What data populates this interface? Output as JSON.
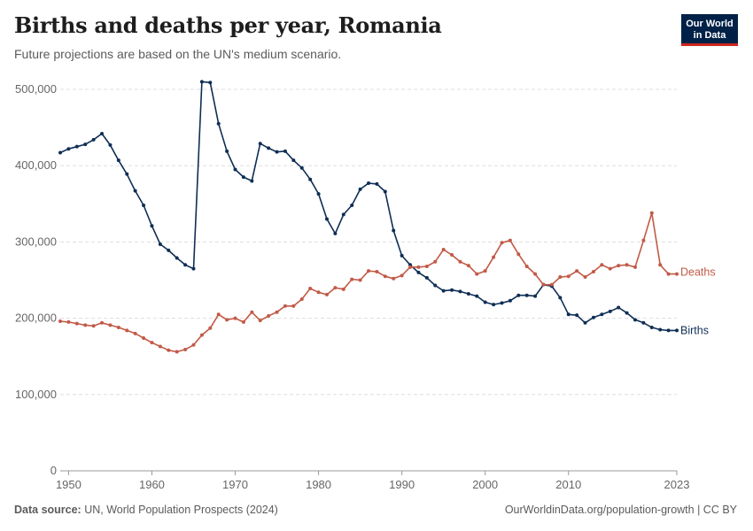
{
  "header": {
    "title": "Births and deaths per year, Romania",
    "subtitle": "Future projections are based on the UN's medium scenario.",
    "logo_line1": "Our World",
    "logo_line2": "in Data"
  },
  "footer": {
    "source_label": "Data source:",
    "source_text": "UN, World Population Prospects (2024)",
    "attribution": "OurWorldinData.org/population-growth | CC BY"
  },
  "colors": {
    "births": "#0f2e55",
    "deaths": "#c25a47",
    "grid": "#dddddd",
    "axis": "#666666"
  },
  "chart_data": {
    "type": "line",
    "title": "Births and deaths per year, Romania",
    "xlabel": "",
    "ylabel": "",
    "xlim": [
      1949,
      2023
    ],
    "ylim": [
      0,
      500000
    ],
    "x_ticks": [
      1950,
      1960,
      1970,
      1980,
      1990,
      2000,
      2010,
      2023
    ],
    "x_tick_labels": [
      "1950",
      "1960",
      "1970",
      "1980",
      "1990",
      "2000",
      "2010",
      "2023"
    ],
    "y_ticks": [
      0,
      100000,
      200000,
      300000,
      400000,
      500000
    ],
    "y_tick_labels": [
      "0",
      "100,000",
      "200,000",
      "300,000",
      "400,000",
      "500,000"
    ],
    "grid": true,
    "legend": "inline-right",
    "series": [
      {
        "name": "Births",
        "label": "Births",
        "x": [
          1949,
          1950,
          1951,
          1952,
          1953,
          1954,
          1955,
          1956,
          1957,
          1958,
          1959,
          1960,
          1961,
          1962,
          1963,
          1964,
          1965,
          1966,
          1967,
          1968,
          1969,
          1970,
          1971,
          1972,
          1973,
          1974,
          1975,
          1976,
          1977,
          1978,
          1979,
          1980,
          1981,
          1982,
          1983,
          1984,
          1985,
          1986,
          1987,
          1988,
          1989,
          1990,
          1991,
          1992,
          1993,
          1994,
          1995,
          1996,
          1997,
          1998,
          1999,
          2000,
          2001,
          2002,
          2003,
          2004,
          2005,
          2006,
          2007,
          2008,
          2009,
          2010,
          2011,
          2012,
          2013,
          2014,
          2015,
          2016,
          2017,
          2018,
          2019,
          2020,
          2021,
          2022,
          2023
        ],
        "values": [
          417000,
          422000,
          425000,
          428000,
          434000,
          442000,
          427000,
          407000,
          389000,
          367000,
          348000,
          321000,
          297000,
          289000,
          279000,
          270000,
          265000,
          510000,
          509000,
          455000,
          419000,
          395000,
          385000,
          380000,
          429000,
          423000,
          418000,
          419000,
          407000,
          397000,
          382000,
          363000,
          330000,
          311000,
          336000,
          348000,
          369000,
          377000,
          376000,
          366000,
          315000,
          282000,
          270000,
          260000,
          253000,
          243000,
          236000,
          237000,
          235000,
          232000,
          229000,
          221000,
          218000,
          220000,
          223000,
          230000,
          230000,
          229000,
          244000,
          242000,
          227000,
          205000,
          204000,
          194000,
          201000,
          205000,
          209000,
          214000,
          207000,
          198000,
          194000,
          188000,
          185000,
          184000,
          184000
        ]
      },
      {
        "name": "Deaths",
        "label": "Deaths",
        "x": [
          1949,
          1950,
          1951,
          1952,
          1953,
          1954,
          1955,
          1956,
          1957,
          1958,
          1959,
          1960,
          1961,
          1962,
          1963,
          1964,
          1965,
          1966,
          1967,
          1968,
          1969,
          1970,
          1971,
          1972,
          1973,
          1974,
          1975,
          1976,
          1977,
          1978,
          1979,
          1980,
          1981,
          1982,
          1983,
          1984,
          1985,
          1986,
          1987,
          1988,
          1989,
          1990,
          1991,
          1992,
          1993,
          1994,
          1995,
          1996,
          1997,
          1998,
          1999,
          2000,
          2001,
          2002,
          2003,
          2004,
          2005,
          2006,
          2007,
          2008,
          2009,
          2010,
          2011,
          2012,
          2013,
          2014,
          2015,
          2016,
          2017,
          2018,
          2019,
          2020,
          2021,
          2022,
          2023
        ],
        "values": [
          196000,
          195000,
          193000,
          191000,
          190000,
          194000,
          191000,
          188000,
          184000,
          180000,
          174000,
          168000,
          163000,
          158000,
          156000,
          159000,
          165000,
          178000,
          187000,
          205000,
          198000,
          200000,
          195000,
          208000,
          197000,
          203000,
          208000,
          216000,
          216000,
          225000,
          239000,
          234000,
          231000,
          240000,
          238000,
          251000,
          250000,
          262000,
          261000,
          255000,
          252000,
          256000,
          267000,
          267000,
          268000,
          274000,
          290000,
          283000,
          274000,
          269000,
          258000,
          262000,
          280000,
          299000,
          302000,
          284000,
          268000,
          258000,
          244000,
          244000,
          254000,
          255000,
          262000,
          254000,
          261000,
          270000,
          265000,
          269000,
          270000,
          267000,
          302000,
          338000,
          270000,
          258000,
          258000
        ]
      }
    ]
  }
}
